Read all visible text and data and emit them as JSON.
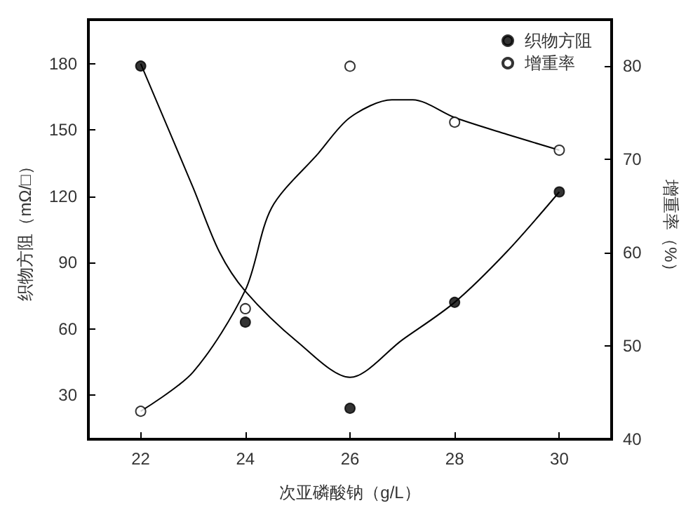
{
  "chart_data": {
    "type": "scatter",
    "xlabel": "次亚磷酸钠（g/L）",
    "ylabel": "织物方阻（mΩ/□）",
    "y2label": "增重率（%）",
    "x": [
      22,
      24,
      26,
      28,
      30
    ],
    "series": [
      {
        "name": "织物方阻",
        "color": "#000000",
        "marker": "circle",
        "values": [
          179,
          63,
          24,
          72,
          122
        ]
      },
      {
        "name": "增重率",
        "color": "#ffffff",
        "marker": "circle",
        "axis": "y2",
        "values": [
          43,
          54,
          80,
          74,
          71
        ]
      },
      {
        "type": "line",
        "color": "#000000",
        "marker": "none",
        "x": [
          22,
          23,
          23.5,
          24,
          25,
          26,
          27,
          28,
          29,
          30
        ],
        "values": [
          180,
          124,
          95,
          77,
          54,
          38,
          55,
          72,
          95,
          122
        ]
      },
      {
        "type": "line",
        "color": "#000000",
        "marker": "none",
        "axis": "y2",
        "x": [
          22,
          23,
          24,
          24.5,
          25.4,
          26,
          26.8,
          27.2,
          28,
          29,
          30
        ],
        "values": [
          43,
          47.2,
          56,
          64.8,
          70.7,
          74.5,
          76.4,
          76.4,
          74.5,
          72.7,
          71
        ]
      }
    ],
    "xlim": [
      21,
      31
    ],
    "xticks": [
      22,
      24,
      26,
      28,
      30
    ],
    "ylim": [
      10,
      200
    ],
    "yticks": [
      30,
      60,
      90,
      120,
      150,
      180
    ],
    "y2lim": [
      40,
      85
    ],
    "y2ticks": [
      40,
      50,
      60,
      70,
      80
    ],
    "grid": false,
    "legend": "top right"
  }
}
